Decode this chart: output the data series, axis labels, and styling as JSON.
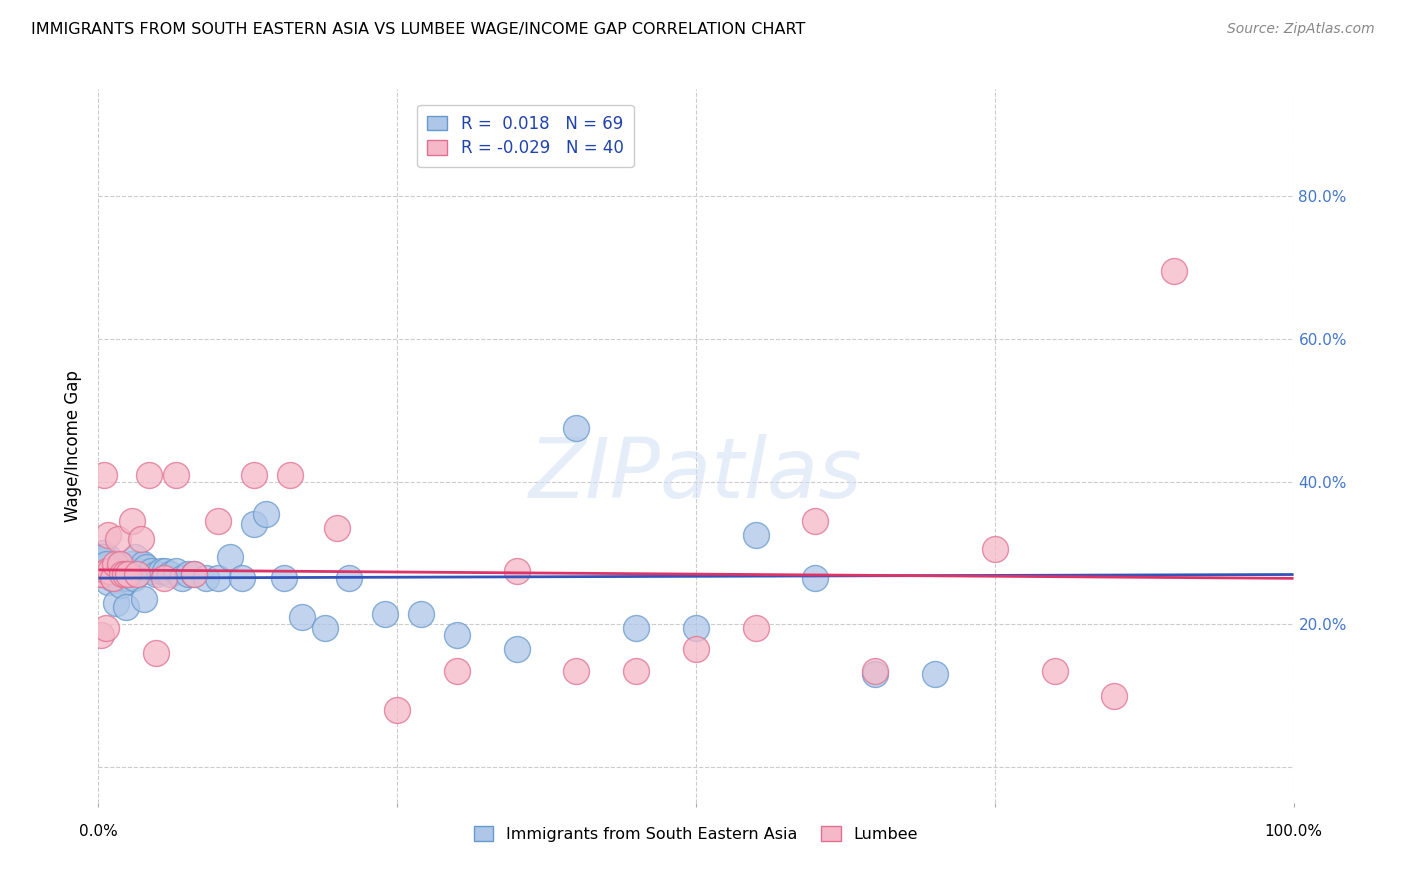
{
  "title": "IMMIGRANTS FROM SOUTH EASTERN ASIA VS LUMBEE WAGE/INCOME GAP CORRELATION CHART",
  "source": "Source: ZipAtlas.com",
  "ylabel": "Wage/Income Gap",
  "blue_R": 0.018,
  "blue_N": 69,
  "pink_R": -0.029,
  "pink_N": 40,
  "blue_color": "#AEC6E8",
  "pink_color": "#F4B8C8",
  "blue_edge": "#6699CC",
  "pink_edge": "#E07090",
  "trend_blue": "#3355BB",
  "trend_pink": "#DD3366",
  "trend_gray": "#BBBBBB",
  "legend_label_blue": "Immigrants from South Eastern Asia",
  "legend_label_pink": "Lumbee",
  "legend_text_color": "#2244AA",
  "right_axis_color": "#4477CC",
  "blue_x": [
    0.002,
    0.003,
    0.004,
    0.005,
    0.006,
    0.007,
    0.008,
    0.009,
    0.01,
    0.011,
    0.012,
    0.013,
    0.014,
    0.015,
    0.016,
    0.017,
    0.018,
    0.019,
    0.02,
    0.021,
    0.022,
    0.023,
    0.024,
    0.025,
    0.027,
    0.029,
    0.031,
    0.034,
    0.037,
    0.04,
    0.044,
    0.048,
    0.052,
    0.056,
    0.06,
    0.065,
    0.07,
    0.075,
    0.08,
    0.09,
    0.1,
    0.11,
    0.12,
    0.13,
    0.14,
    0.155,
    0.17,
    0.19,
    0.21,
    0.24,
    0.27,
    0.3,
    0.35,
    0.4,
    0.45,
    0.5,
    0.55,
    0.6,
    0.65,
    0.7,
    0.004,
    0.006,
    0.008,
    0.011,
    0.015,
    0.019,
    0.023,
    0.03,
    0.038
  ],
  "blue_y": [
    0.29,
    0.28,
    0.3,
    0.295,
    0.285,
    0.275,
    0.295,
    0.27,
    0.285,
    0.275,
    0.27,
    0.265,
    0.285,
    0.27,
    0.28,
    0.265,
    0.28,
    0.275,
    0.27,
    0.275,
    0.26,
    0.265,
    0.27,
    0.265,
    0.285,
    0.275,
    0.295,
    0.275,
    0.285,
    0.28,
    0.275,
    0.27,
    0.275,
    0.275,
    0.27,
    0.275,
    0.265,
    0.27,
    0.27,
    0.265,
    0.265,
    0.295,
    0.265,
    0.34,
    0.355,
    0.265,
    0.21,
    0.195,
    0.265,
    0.215,
    0.215,
    0.185,
    0.165,
    0.475,
    0.195,
    0.195,
    0.325,
    0.265,
    0.13,
    0.13,
    0.295,
    0.285,
    0.26,
    0.265,
    0.23,
    0.255,
    0.225,
    0.265,
    0.235
  ],
  "pink_x": [
    0.001,
    0.002,
    0.003,
    0.005,
    0.006,
    0.007,
    0.008,
    0.01,
    0.012,
    0.014,
    0.016,
    0.018,
    0.02,
    0.022,
    0.025,
    0.028,
    0.032,
    0.036,
    0.042,
    0.048,
    0.055,
    0.065,
    0.08,
    0.1,
    0.13,
    0.16,
    0.2,
    0.25,
    0.3,
    0.35,
    0.4,
    0.45,
    0.5,
    0.55,
    0.6,
    0.65,
    0.75,
    0.8,
    0.85,
    0.9
  ],
  "pink_y": [
    0.27,
    0.185,
    0.27,
    0.41,
    0.195,
    0.275,
    0.325,
    0.275,
    0.265,
    0.285,
    0.32,
    0.285,
    0.27,
    0.27,
    0.27,
    0.345,
    0.27,
    0.32,
    0.41,
    0.16,
    0.265,
    0.41,
    0.27,
    0.345,
    0.41,
    0.41,
    0.335,
    0.08,
    0.135,
    0.275,
    0.135,
    0.135,
    0.165,
    0.195,
    0.345,
    0.135,
    0.305,
    0.135,
    0.1,
    0.695
  ],
  "xlim": [
    0.0,
    1.0
  ],
  "ylim": [
    -0.05,
    0.95
  ],
  "ytick_positions": [
    0.0,
    0.2,
    0.4,
    0.6,
    0.8
  ],
  "ytick_labels_right": [
    "",
    "20.0%",
    "40.0%",
    "60.0%",
    "80.0%"
  ],
  "xtick_positions": [
    0.0,
    0.25,
    0.5,
    0.75,
    1.0
  ],
  "grid_color": "#CCCCCC",
  "background_color": "#FFFFFF"
}
